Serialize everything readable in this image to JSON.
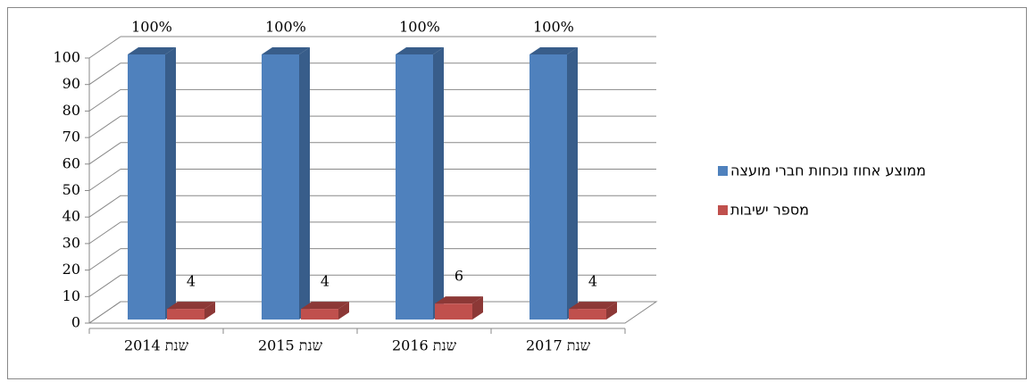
{
  "chart_data": {
    "type": "bar3d",
    "categories": [
      "שנת 2014",
      "שנת 2015",
      "שנת 2016",
      "שנת 2017"
    ],
    "series": [
      {
        "name": "ממוצע אחוז נוכחות חברי מועצה",
        "color": "#4f81bd",
        "side_color": "#385d8a",
        "values": [
          100,
          100,
          100,
          100
        ],
        "value_labels": [
          "100%",
          "100%",
          "100%",
          "100%"
        ]
      },
      {
        "name": "מספר ישיבות",
        "color": "#c0504d",
        "side_color": "#8c3836",
        "values": [
          4,
          4,
          6,
          4
        ]
      }
    ],
    "ylim": [
      0,
      100
    ],
    "yticks": [
      0,
      10,
      20,
      30,
      40,
      50,
      60,
      70,
      80,
      90,
      100
    ],
    "grid": true,
    "legend": "right"
  }
}
